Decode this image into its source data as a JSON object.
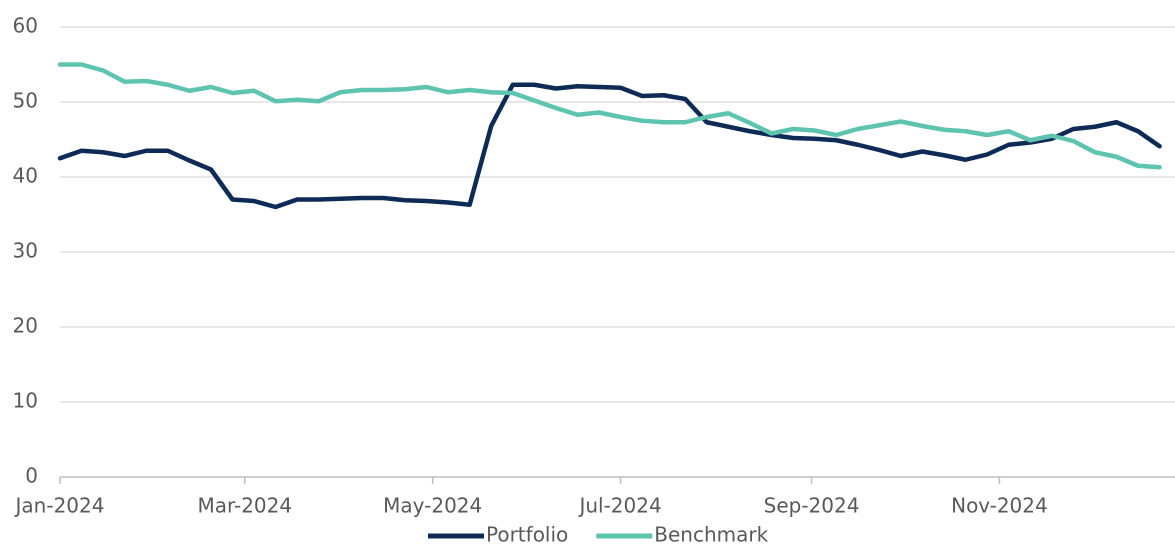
{
  "chart_data": {
    "type": "line",
    "x": [
      0,
      7,
      14,
      21,
      28,
      35,
      42,
      49,
      56,
      63,
      70,
      77,
      84,
      91,
      98,
      105,
      112,
      119,
      126,
      133,
      140,
      147,
      154,
      161,
      168,
      175,
      182,
      189,
      196,
      203,
      210,
      217,
      224,
      231,
      238,
      245,
      252,
      259,
      266,
      273,
      280,
      287,
      294,
      301,
      308,
      315,
      322,
      329,
      336,
      343,
      350,
      357
    ],
    "xlim": [
      0,
      362
    ],
    "xticks": [
      {
        "value": 0,
        "label": "Jan-2024"
      },
      {
        "value": 60,
        "label": "Mar-2024"
      },
      {
        "value": 121,
        "label": "May-2024"
      },
      {
        "value": 182,
        "label": "Jul-2024"
      },
      {
        "value": 244,
        "label": "Sep-2024"
      },
      {
        "value": 305,
        "label": "Nov-2024"
      }
    ],
    "ylim": [
      0,
      60
    ],
    "yticks": [
      0,
      10,
      20,
      30,
      40,
      50,
      60
    ],
    "grid": true,
    "legend": "bottom",
    "series": [
      {
        "name": "Portfolio",
        "color": "#0d2b55",
        "values": [
          42.5,
          43.5,
          43.3,
          42.8,
          43.5,
          43.5,
          42.2,
          41.0,
          37.0,
          36.8,
          36.0,
          37.0,
          37.0,
          37.1,
          37.2,
          37.2,
          36.9,
          36.8,
          36.6,
          36.3,
          46.8,
          52.3,
          52.3,
          51.8,
          52.1,
          52.0,
          51.9,
          50.8,
          50.9,
          50.4,
          47.3,
          46.7,
          46.1,
          45.6,
          45.2,
          45.1,
          44.9,
          44.3,
          43.6,
          42.8,
          43.4,
          42.9,
          42.3,
          43.0,
          44.3,
          44.6,
          45.1,
          46.4,
          46.7,
          47.3,
          46.1,
          44.1
        ]
      },
      {
        "name": "Benchmark",
        "color": "#5ec4b0",
        "values": [
          55.0,
          55.0,
          54.2,
          52.7,
          52.8,
          52.3,
          51.5,
          52.0,
          51.2,
          51.5,
          50.1,
          50.3,
          50.1,
          51.3,
          51.6,
          51.6,
          51.7,
          52.0,
          51.3,
          51.6,
          51.3,
          51.2,
          50.2,
          49.2,
          48.3,
          48.6,
          48.0,
          47.5,
          47.3,
          47.3,
          48.0,
          48.5,
          47.2,
          45.8,
          46.4,
          46.2,
          45.6,
          46.4,
          46.9,
          47.4,
          46.8,
          46.3,
          46.1,
          45.6,
          46.1,
          44.9,
          45.5,
          44.8,
          43.3,
          42.7,
          41.5,
          41.3
        ]
      }
    ]
  }
}
